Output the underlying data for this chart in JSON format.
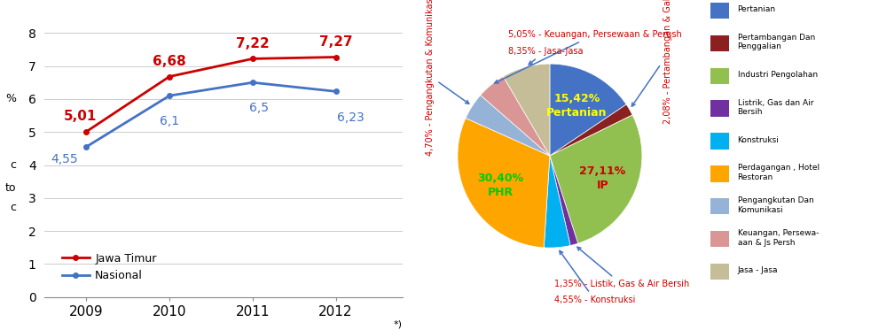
{
  "line_years": [
    2009,
    2010,
    2011,
    2012
  ],
  "jatim_values": [
    5.01,
    6.68,
    7.22,
    7.27
  ],
  "nasional_values": [
    4.55,
    6.1,
    6.5,
    6.23
  ],
  "jatim_color": "#CC0000",
  "nasional_color": "#4472C4",
  "yticks": [
    0,
    1,
    2,
    3,
    4,
    5,
    6,
    7,
    8
  ],
  "legend_jatim": "Jawa Timur",
  "legend_nasional": "Nasional",
  "pie_legend_labels": [
    "Pertanian",
    "Pertambangan Dan\nPenggalian",
    "Industri Pengolahan",
    "Listrik, Gas dan Air\nBersih",
    "Konstruksi",
    "Perdagangan , Hotel\nRestoran",
    "Pengangkutan Dan\nKomunikasi",
    "Keuangan, Persewa-\naan & Js Persh",
    "Jasa - Jasa"
  ],
  "pie_values": [
    15.42,
    2.08,
    27.11,
    1.35,
    4.55,
    30.4,
    4.7,
    5.05,
    8.35
  ],
  "pie_colors": [
    "#4472C4",
    "#8B2020",
    "#92C050",
    "#7030A0",
    "#00B0F0",
    "#FFA500",
    "#95B3D7",
    "#D99694",
    "#C4BD97"
  ],
  "footnote": "*)"
}
